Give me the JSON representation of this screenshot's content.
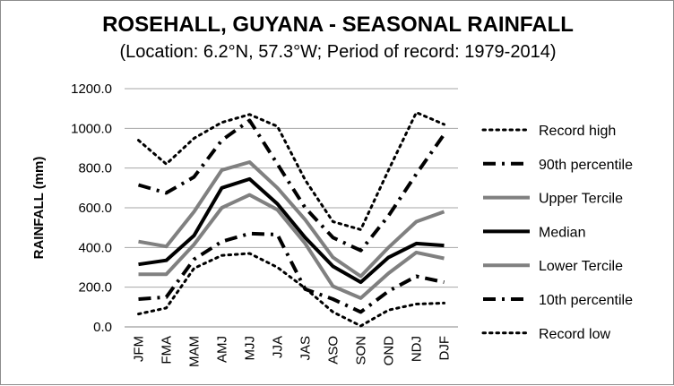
{
  "chart_data": {
    "type": "line",
    "title": "ROSEHALL, GUYANA - SEASONAL RAINFALL",
    "subtitle": "(Location: 6.2°N, 57.3°W; Period of record: 1979-2014)",
    "ylabel": "RAINFALL (mm)",
    "xlabel": "",
    "ylim": [
      0,
      1200
    ],
    "y_ticks": [
      "0.0",
      "200.0",
      "400.0",
      "600.0",
      "800.0",
      "1000.0",
      "1200.0"
    ],
    "grid": true,
    "legend_position": "right",
    "categories": [
      "JFM",
      "FMA",
      "MAM",
      "AMJ",
      "MJJ",
      "JJA",
      "JAS",
      "ASO",
      "SON",
      "OND",
      "NDJ",
      "DJF"
    ],
    "series": [
      {
        "name": "Record high",
        "style": "dotted",
        "color": "#000000",
        "values": [
          940,
          820,
          950,
          1030,
          1070,
          1010,
          740,
          530,
          490,
          790,
          1080,
          1020
        ]
      },
      {
        "name": "90th percentile",
        "style": "dashdot",
        "color": "#000000",
        "values": [
          715,
          675,
          755,
          940,
          1040,
          820,
          600,
          450,
          385,
          560,
          770,
          970
        ]
      },
      {
        "name": "Upper Tercile",
        "style": "solid-gray",
        "color": "#808080",
        "values": [
          430,
          405,
          580,
          790,
          830,
          700,
          540,
          350,
          255,
          400,
          530,
          580
        ]
      },
      {
        "name": "Median",
        "style": "solid-black",
        "color": "#000000",
        "values": [
          315,
          335,
          460,
          700,
          745,
          620,
          450,
          305,
          225,
          350,
          420,
          410
        ]
      },
      {
        "name": "Lower Tercile",
        "style": "solid-gray",
        "color": "#808080",
        "values": [
          265,
          265,
          415,
          600,
          665,
          590,
          420,
          205,
          145,
          270,
          375,
          345
        ]
      },
      {
        "name": "10th percentile",
        "style": "dashdot",
        "color": "#000000",
        "values": [
          140,
          150,
          340,
          430,
          470,
          465,
          190,
          140,
          75,
          180,
          255,
          225
        ]
      },
      {
        "name": "Record low",
        "style": "dotted",
        "color": "#000000",
        "values": [
          65,
          95,
          295,
          360,
          370,
          300,
          195,
          75,
          5,
          85,
          115,
          120
        ]
      }
    ]
  }
}
